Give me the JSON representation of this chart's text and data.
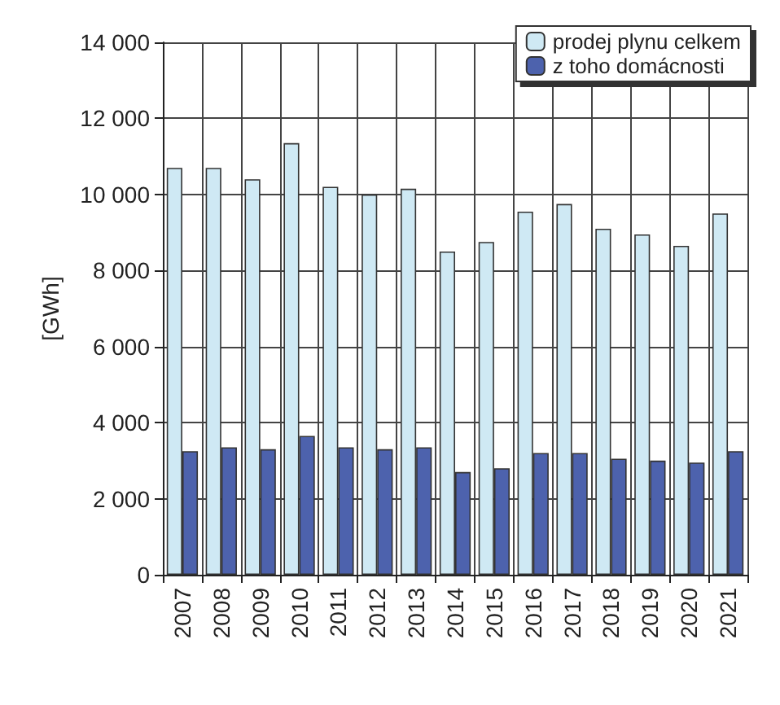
{
  "chart_data": {
    "type": "bar",
    "ylabel": "[GWh]",
    "categories": [
      "2007",
      "2008",
      "2009",
      "2010",
      "2011",
      "2012",
      "2013",
      "2014",
      "2015",
      "2016",
      "2017",
      "2018",
      "2019",
      "2020",
      "2021"
    ],
    "series": [
      {
        "name": "prodej plynu celkem",
        "color": "#cfe9f4",
        "values": [
          10700,
          10700,
          10400,
          11350,
          10200,
          10000,
          10150,
          8500,
          8750,
          9550,
          9750,
          9100,
          8950,
          8650,
          9500
        ]
      },
      {
        "name": "z toho domácnosti",
        "color": "#4d62ad",
        "values": [
          3250,
          3350,
          3300,
          3650,
          3350,
          3300,
          3350,
          2700,
          2800,
          3200,
          3200,
          3050,
          3000,
          2950,
          3250
        ]
      }
    ],
    "ylim": [
      0,
      14000
    ],
    "yticks": [
      0,
      {
        "value": 2000,
        "label": "2 000"
      },
      {
        "value": 4000,
        "label": "4 000"
      },
      {
        "value": 6000,
        "label": "6 000"
      },
      {
        "value": 8000,
        "label": "8 000"
      },
      {
        "value": 10000,
        "label": "10 000"
      },
      {
        "value": 12000,
        "label": "12 000"
      },
      {
        "value": 14000,
        "label": "14 000"
      }
    ],
    "grid": true,
    "legend": "top right"
  }
}
